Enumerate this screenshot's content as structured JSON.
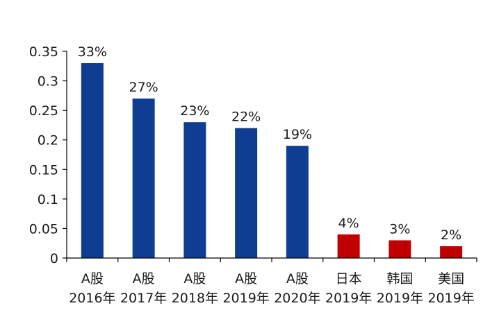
{
  "chart_data": {
    "type": "bar",
    "categories": [
      [
        "A股",
        "2016年"
      ],
      [
        "A股",
        "2017年"
      ],
      [
        "A股",
        "2018年"
      ],
      [
        "A股",
        "2019年"
      ],
      [
        "A股",
        "2020年"
      ],
      [
        "日本",
        "2019年"
      ],
      [
        "韩国",
        "2019年"
      ],
      [
        "美国",
        "2019年"
      ]
    ],
    "values": [
      0.33,
      0.27,
      0.23,
      0.22,
      0.19,
      0.04,
      0.03,
      0.02
    ],
    "data_labels": [
      "33%",
      "27%",
      "23%",
      "22%",
      "19%",
      "4%",
      "3%",
      "2%"
    ],
    "bar_colors": [
      "#0f3d91",
      "#0f3d91",
      "#0f3d91",
      "#0f3d91",
      "#0f3d91",
      "#c00000",
      "#c00000",
      "#c00000"
    ],
    "yticks": [
      0,
      0.05,
      0.1,
      0.15,
      0.2,
      0.25,
      0.3,
      0.35
    ],
    "ytick_labels": [
      "0",
      "0.05",
      "0.1",
      "0.15",
      "0.2",
      "0.25",
      "0.3",
      "0.35"
    ],
    "ylim": [
      0,
      0.35
    ],
    "grid": false,
    "legend": "none",
    "title": "",
    "xlabel": "",
    "ylabel": ""
  }
}
